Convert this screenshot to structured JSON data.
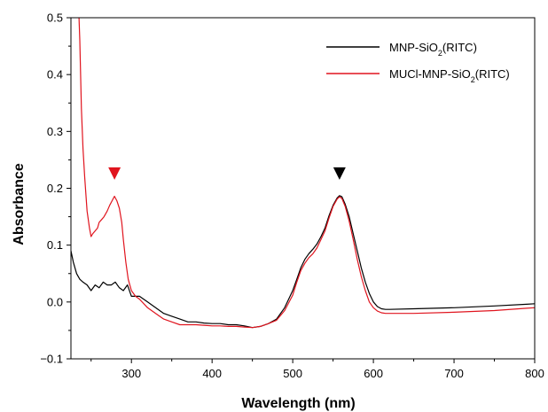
{
  "chart_data": {
    "type": "line",
    "title": "",
    "xlabel": "Wavelength (nm)",
    "ylabel": "Absorbance",
    "xlim": [
      225,
      800
    ],
    "ylim": [
      -0.1,
      0.5
    ],
    "x_ticks": [
      300,
      400,
      500,
      600,
      700,
      800
    ],
    "y_ticks": [
      -0.1,
      0.0,
      0.1,
      0.2,
      0.3,
      0.4,
      0.5
    ],
    "x_tick_labels": [
      "300",
      "400",
      "500",
      "600",
      "700",
      "800"
    ],
    "y_tick_labels": [
      "−0.1",
      "0.0",
      "0.1",
      "0.2",
      "0.3",
      "0.4",
      "0.5"
    ],
    "grid": false,
    "legend_position": "top-right",
    "series": [
      {
        "name": "MNP-SiO2(RITC)",
        "name_main": "MNP-SiO",
        "name_sub": "2",
        "name_tail": "(RITC)",
        "color": "#000000",
        "x": [
          225,
          228,
          232,
          236,
          240,
          245,
          250,
          255,
          260,
          265,
          270,
          275,
          280,
          285,
          290,
          295,
          300,
          310,
          320,
          330,
          340,
          350,
          360,
          370,
          380,
          390,
          400,
          410,
          420,
          430,
          440,
          450,
          460,
          470,
          480,
          490,
          500,
          505,
          510,
          515,
          520,
          525,
          530,
          535,
          540,
          545,
          550,
          555,
          558,
          561,
          565,
          570,
          575,
          580,
          585,
          590,
          595,
          600,
          605,
          610,
          615,
          620,
          650,
          700,
          750,
          790,
          800
        ],
        "y": [
          0.09,
          0.07,
          0.05,
          0.04,
          0.035,
          0.03,
          0.02,
          0.03,
          0.025,
          0.035,
          0.03,
          0.03,
          0.035,
          0.025,
          0.02,
          0.03,
          0.01,
          0.01,
          0.0,
          -0.01,
          -0.02,
          -0.025,
          -0.03,
          -0.035,
          -0.035,
          -0.037,
          -0.038,
          -0.038,
          -0.04,
          -0.04,
          -0.042,
          -0.045,
          -0.043,
          -0.038,
          -0.03,
          -0.01,
          0.02,
          0.04,
          0.06,
          0.075,
          0.085,
          0.093,
          0.102,
          0.115,
          0.13,
          0.152,
          0.17,
          0.183,
          0.187,
          0.185,
          0.172,
          0.15,
          0.12,
          0.09,
          0.06,
          0.035,
          0.015,
          0.0,
          -0.008,
          -0.012,
          -0.013,
          -0.013,
          -0.012,
          -0.01,
          -0.007,
          -0.004,
          -0.003
        ]
      },
      {
        "name": "MUCl-MNP-SiO2(RITC)",
        "name_main": "MUCl-MNP-SiO",
        "name_sub": "2",
        "name_tail": "(RITC)",
        "color": "#e0141e",
        "x": [
          235,
          236,
          237,
          238,
          240,
          242,
          245,
          248,
          250,
          252,
          255,
          258,
          260,
          263,
          266,
          270,
          273,
          276,
          279,
          282,
          285,
          288,
          290,
          293,
          296,
          300,
          305,
          310,
          320,
          330,
          340,
          350,
          360,
          370,
          380,
          390,
          400,
          410,
          420,
          430,
          440,
          450,
          460,
          470,
          480,
          490,
          500,
          505,
          510,
          515,
          520,
          525,
          530,
          535,
          540,
          545,
          550,
          555,
          558,
          561,
          565,
          570,
          575,
          580,
          585,
          590,
          595,
          600,
          605,
          610,
          615,
          620,
          650,
          700,
          750,
          790,
          800
        ],
        "y": [
          0.5,
          0.46,
          0.4,
          0.34,
          0.27,
          0.22,
          0.16,
          0.13,
          0.115,
          0.12,
          0.125,
          0.13,
          0.14,
          0.145,
          0.15,
          0.16,
          0.17,
          0.178,
          0.186,
          0.178,
          0.165,
          0.14,
          0.11,
          0.07,
          0.04,
          0.02,
          0.01,
          0.005,
          -0.01,
          -0.02,
          -0.03,
          -0.035,
          -0.04,
          -0.04,
          -0.04,
          -0.041,
          -0.042,
          -0.042,
          -0.043,
          -0.043,
          -0.044,
          -0.045,
          -0.043,
          -0.038,
          -0.032,
          -0.015,
          0.012,
          0.035,
          0.055,
          0.068,
          0.078,
          0.085,
          0.095,
          0.11,
          0.125,
          0.148,
          0.168,
          0.181,
          0.185,
          0.182,
          0.168,
          0.142,
          0.11,
          0.075,
          0.045,
          0.02,
          0.0,
          -0.01,
          -0.016,
          -0.019,
          -0.02,
          -0.02,
          -0.02,
          -0.018,
          -0.015,
          -0.011,
          -0.01
        ]
      }
    ],
    "markers": [
      {
        "x": 279,
        "y": 0.215,
        "color": "#e0141e",
        "shape": "down-triangle"
      },
      {
        "x": 558,
        "y": 0.215,
        "color": "#000000",
        "shape": "down-triangle"
      }
    ]
  }
}
